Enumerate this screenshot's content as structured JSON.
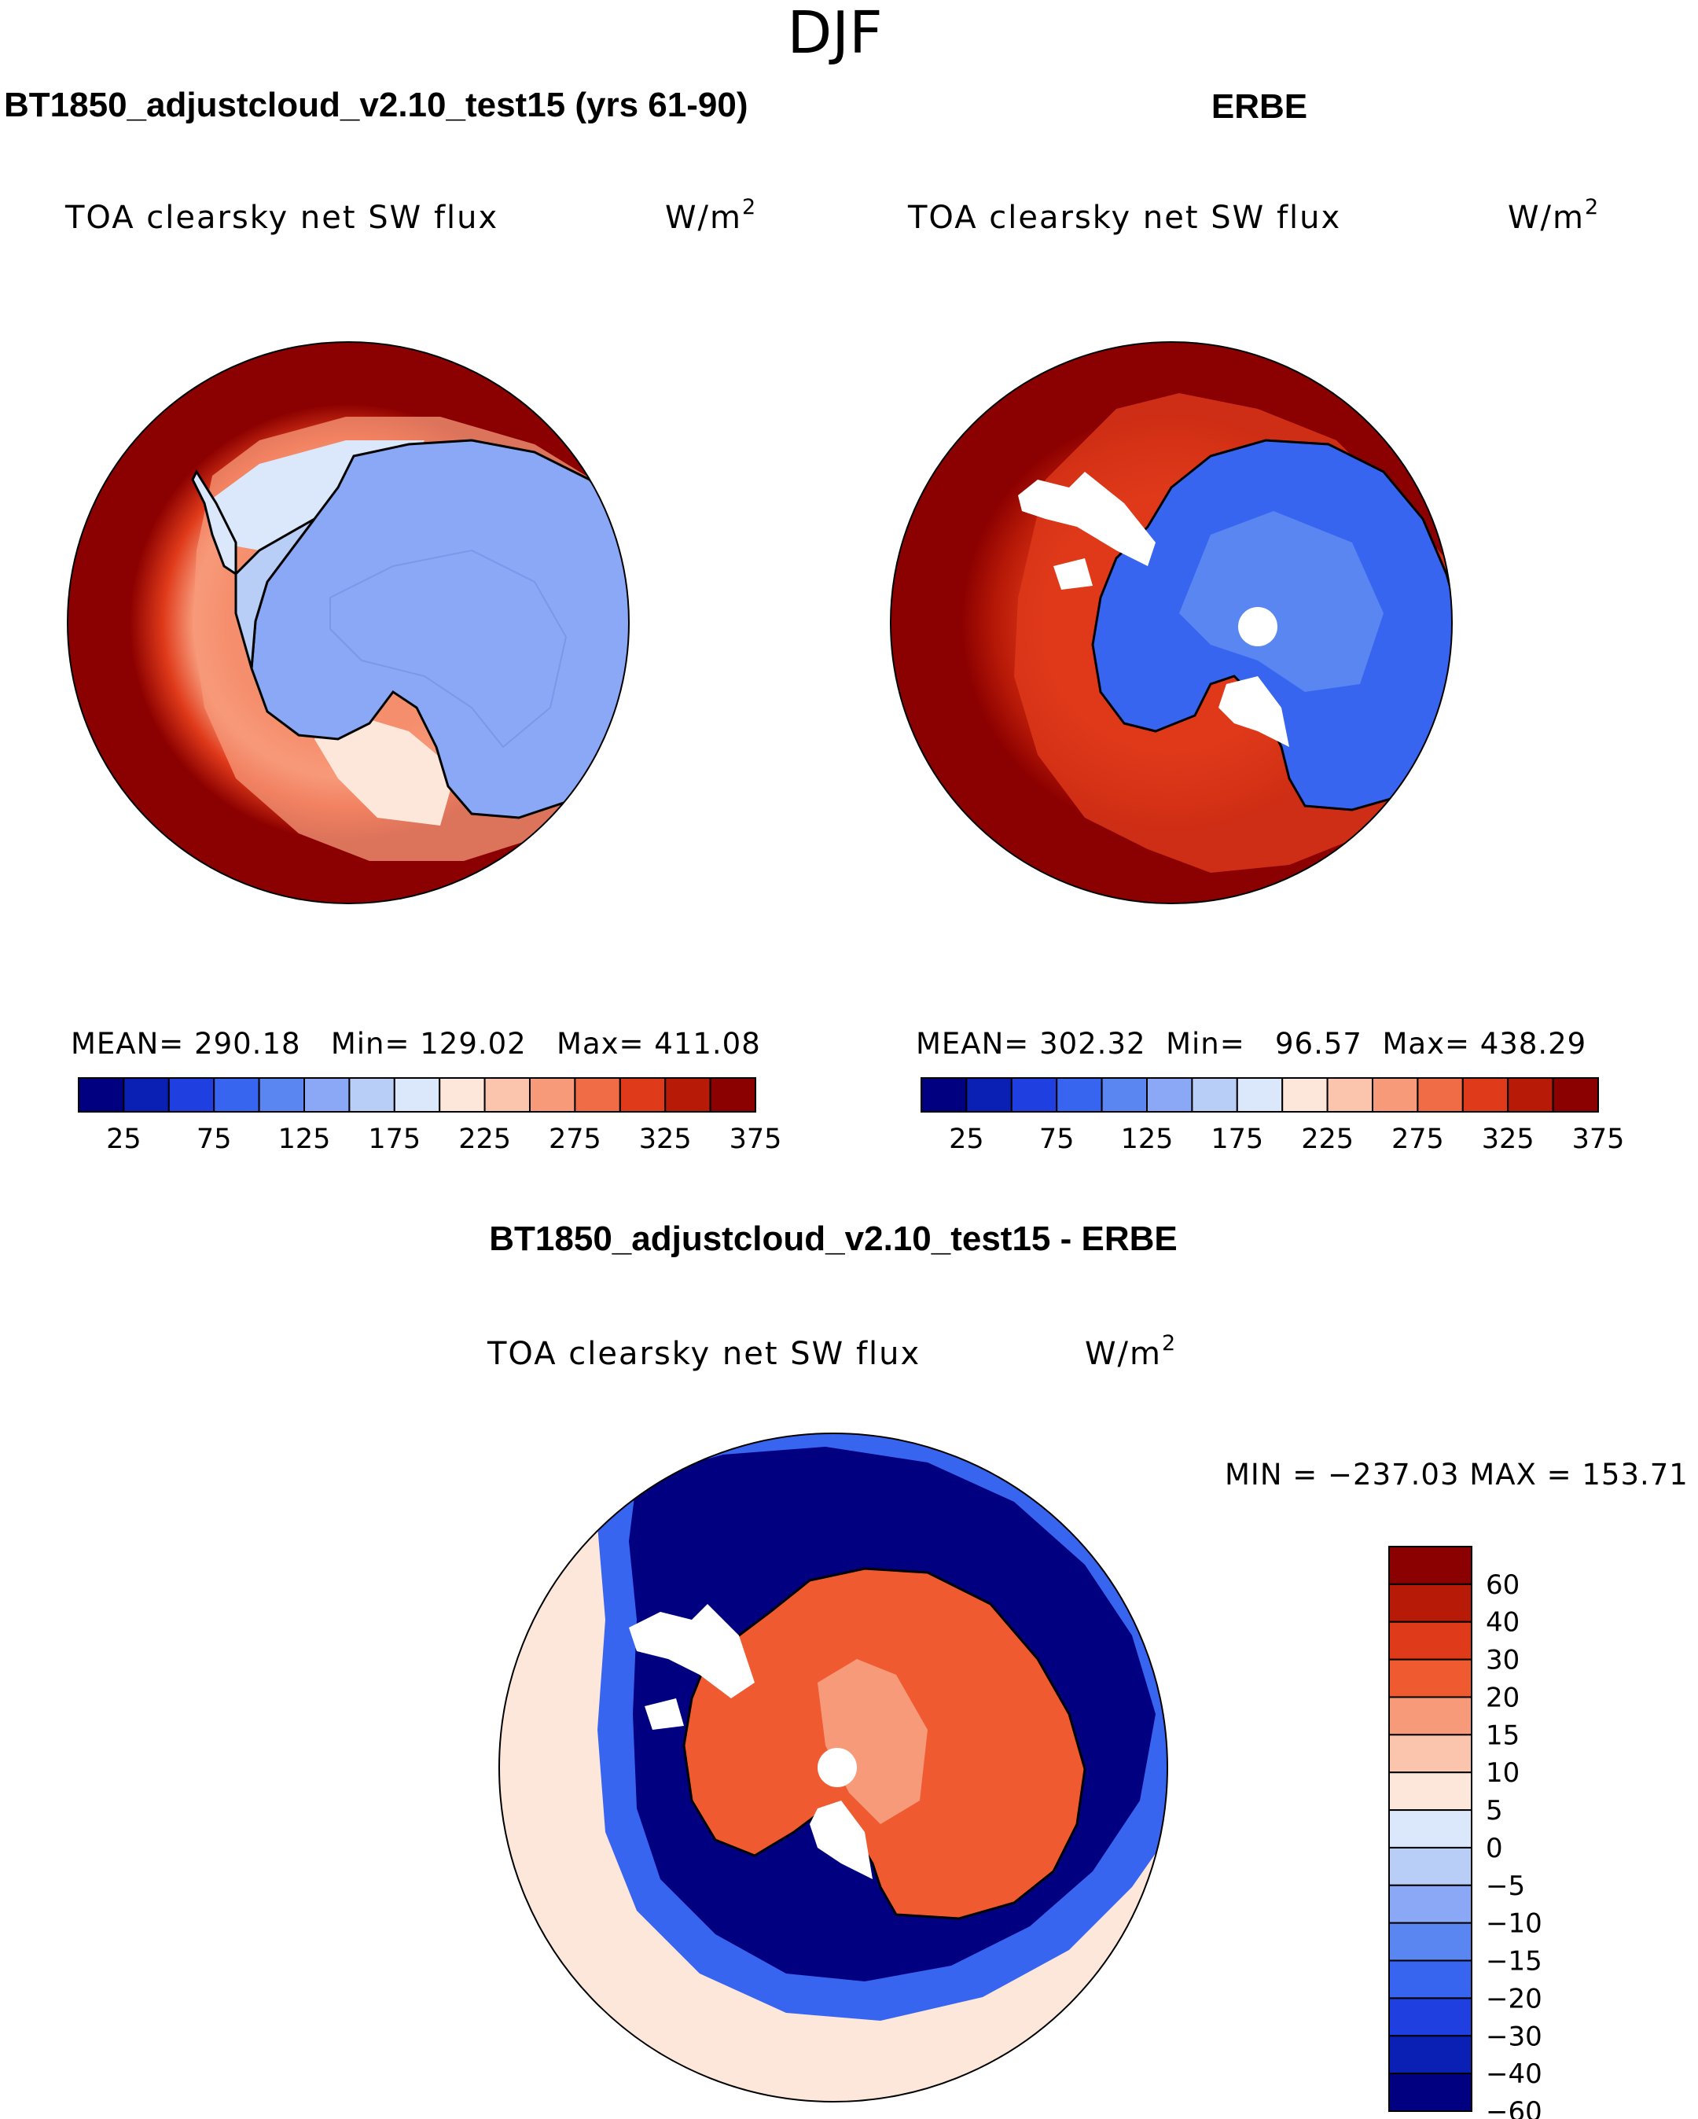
{
  "chart_data": {
    "type": "heatmap",
    "title": "DJF",
    "projection": "south polar stereographic",
    "panels": [
      {
        "name": "model",
        "title": "BT1850_adjustcloud_v2.10_test15 (yrs 61-90)",
        "field": "TOA clearsky net SW flux",
        "units": "W/m",
        "units_exp": "2",
        "stats": {
          "mean": "290.18",
          "min": "129.02",
          "max": "411.08"
        },
        "stats_labels": {
          "mean": "MEAN=",
          "min": "Min=",
          "max": "Max="
        },
        "levels": [
          25,
          50,
          75,
          100,
          125,
          150,
          175,
          200,
          225,
          250,
          275,
          300,
          325,
          350,
          375
        ],
        "colorbar_ticks": [
          "25",
          "75",
          "125",
          "175",
          "225",
          "275",
          "325",
          "375"
        ],
        "colors": [
          "#000080",
          "#0a1fb4",
          "#1f3fe0",
          "#3865f0",
          "#5a86f2",
          "#8aa8f5",
          "#b8cef7",
          "#dbe8fb",
          "#fde7da",
          "#fbc4ad",
          "#f79a7a",
          "#ef6c46",
          "#df3a1a",
          "#b81a08",
          "#8b0000"
        ]
      },
      {
        "name": "observations",
        "title": "ERBE",
        "field": "TOA clearsky net SW flux",
        "units": "W/m",
        "units_exp": "2",
        "stats": {
          "mean": "302.32",
          "min": "96.57",
          "max": "438.29"
        },
        "stats_labels": {
          "mean": "MEAN=",
          "min": "Min=",
          "max": "Max="
        },
        "levels": [
          25,
          50,
          75,
          100,
          125,
          150,
          175,
          200,
          225,
          250,
          275,
          300,
          325,
          350,
          375
        ],
        "colorbar_ticks": [
          "25",
          "75",
          "125",
          "175",
          "225",
          "275",
          "325",
          "375"
        ],
        "colors": [
          "#000080",
          "#0a1fb4",
          "#1f3fe0",
          "#3865f0",
          "#5a86f2",
          "#8aa8f5",
          "#b8cef7",
          "#dbe8fb",
          "#fde7da",
          "#fbc4ad",
          "#f79a7a",
          "#ef6c46",
          "#df3a1a",
          "#b81a08",
          "#8b0000"
        ]
      },
      {
        "name": "difference",
        "title": "BT1850_adjustcloud_v2.10_test15 - ERBE",
        "field": "TOA clearsky net SW flux",
        "units": "W/m",
        "units_exp": "2",
        "stats_text": "MIN = −237.03 MAX = 153.71",
        "levels": [
          60,
          40,
          30,
          20,
          15,
          10,
          5,
          0,
          -5,
          -10,
          -15,
          -20,
          -30,
          -40,
          -60
        ],
        "colorbar_ticks": [
          "60",
          "40",
          "30",
          "20",
          "15",
          "10",
          "5",
          "0",
          "−5",
          "−10",
          "−15",
          "−20",
          "−30",
          "−40",
          "−60"
        ],
        "colors": [
          "#8b0000",
          "#b81a08",
          "#df3a1a",
          "#ef5a30",
          "#f79a7a",
          "#fbc4ad",
          "#fde7da",
          "#dbe8fb",
          "#b8cef7",
          "#8aa8f5",
          "#5a86f2",
          "#3865f0",
          "#1f3fe0",
          "#0a1fb4",
          "#000080"
        ]
      }
    ]
  }
}
